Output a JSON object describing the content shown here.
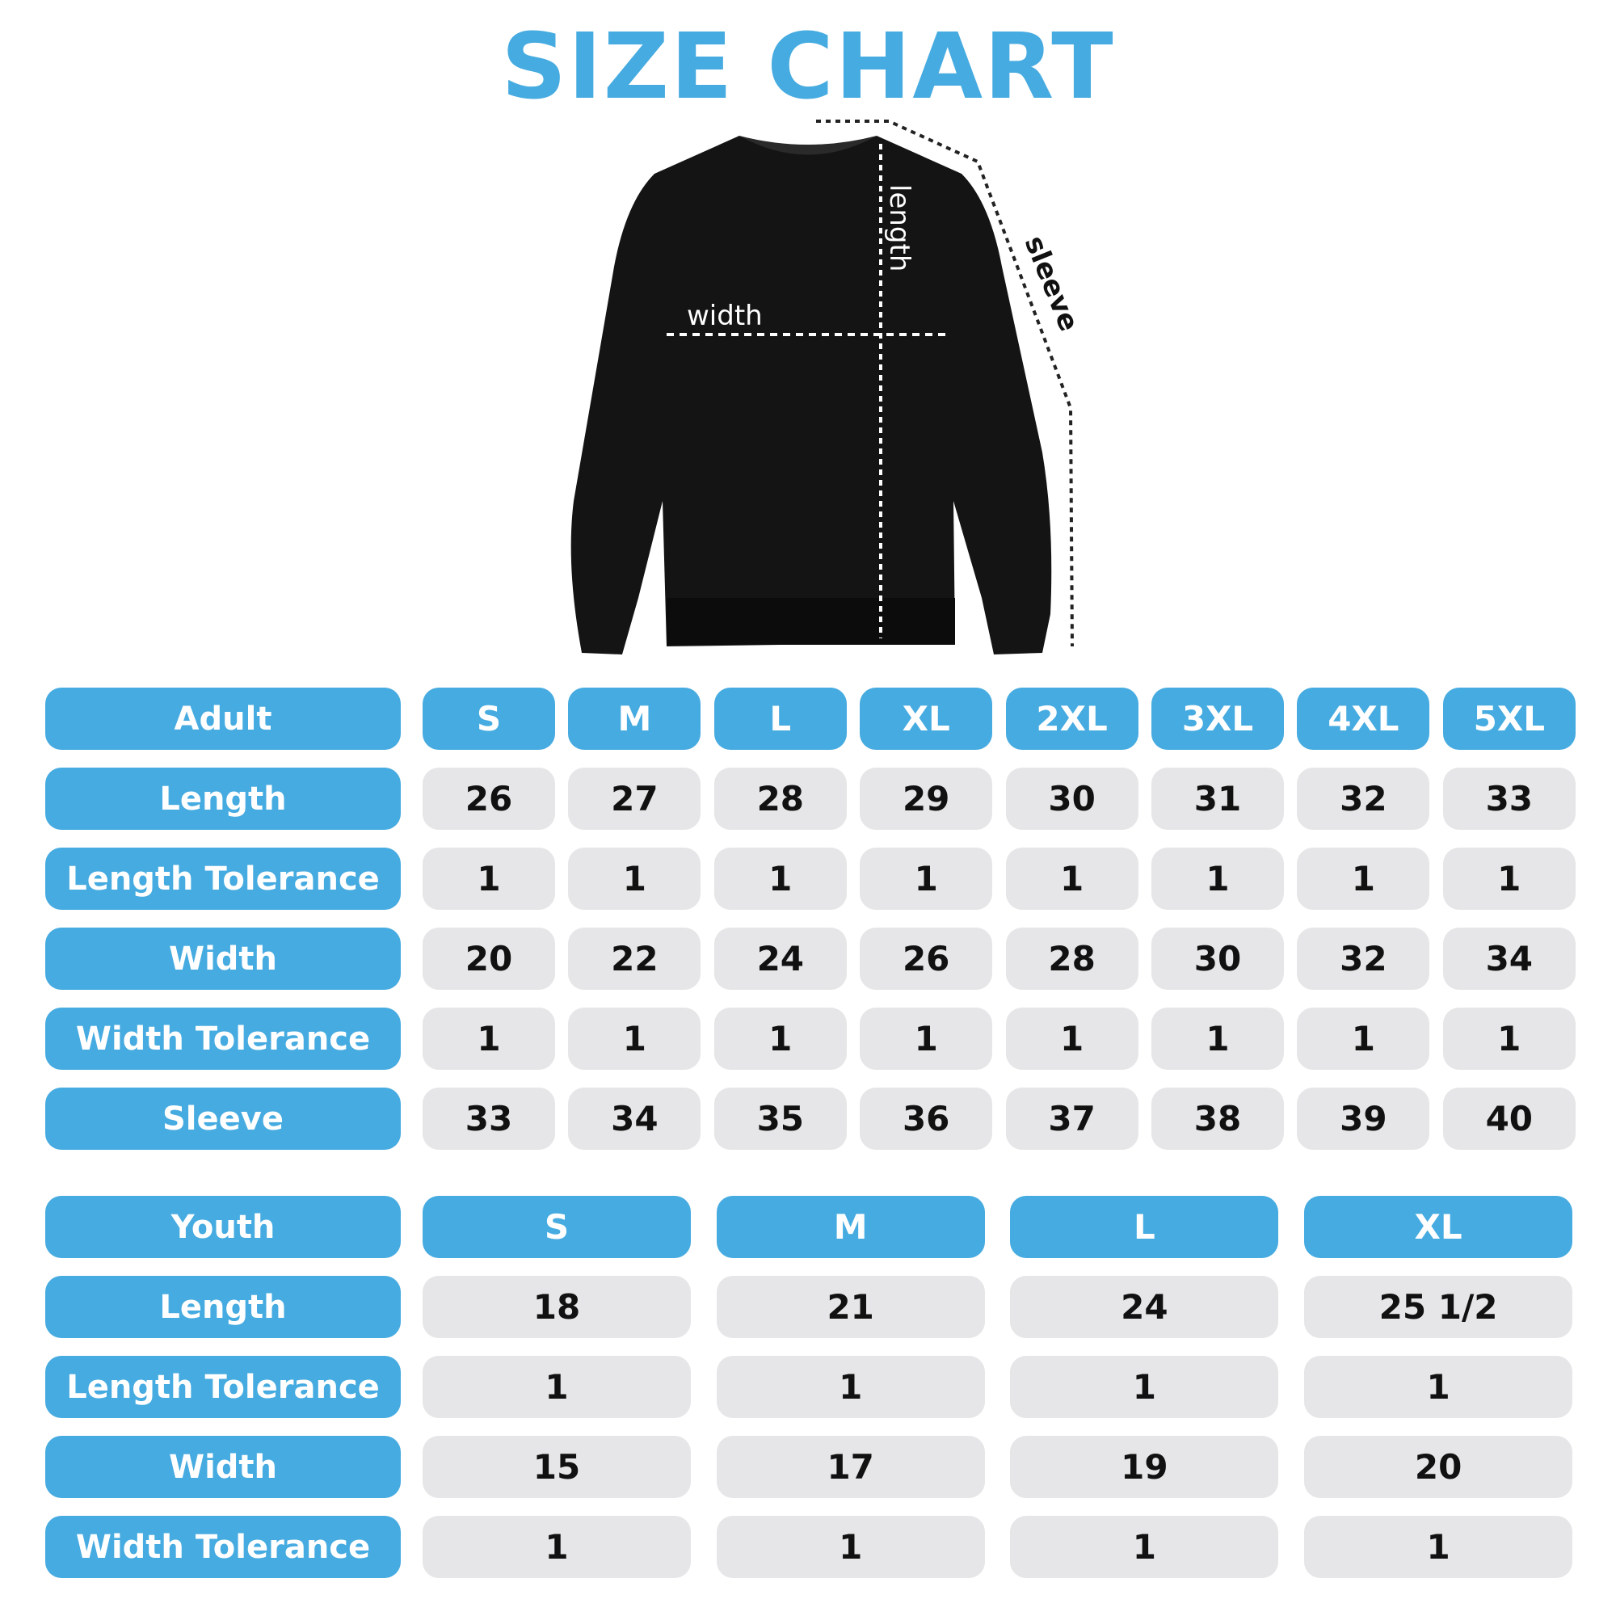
{
  "title": "SIZE CHART",
  "diagram": {
    "width_label": "width",
    "length_label": "length",
    "sleeve_label": "sleeve"
  },
  "colors": {
    "accent": "#46abe0",
    "cell_bg": "#e6e6e8",
    "text": "#111111"
  },
  "adult": {
    "header": "Adult",
    "sizes": [
      "S",
      "M",
      "L",
      "XL",
      "2XL",
      "3XL",
      "4XL",
      "5XL"
    ],
    "rows": [
      {
        "label": "Length",
        "values": [
          "26",
          "27",
          "28",
          "29",
          "30",
          "31",
          "32",
          "33"
        ]
      },
      {
        "label": "Length Tolerance",
        "values": [
          "1",
          "1",
          "1",
          "1",
          "1",
          "1",
          "1",
          "1"
        ]
      },
      {
        "label": "Width",
        "values": [
          "20",
          "22",
          "24",
          "26",
          "28",
          "30",
          "32",
          "34"
        ]
      },
      {
        "label": "Width Tolerance",
        "values": [
          "1",
          "1",
          "1",
          "1",
          "1",
          "1",
          "1",
          "1"
        ]
      },
      {
        "label": "Sleeve",
        "values": [
          "33",
          "34",
          "35",
          "36",
          "37",
          "38",
          "39",
          "40"
        ]
      }
    ]
  },
  "youth": {
    "header": "Youth",
    "sizes": [
      "S",
      "M",
      "L",
      "XL"
    ],
    "rows": [
      {
        "label": "Length",
        "values": [
          "18",
          "21",
          "24",
          "25 1/2"
        ]
      },
      {
        "label": "Length Tolerance",
        "values": [
          "1",
          "1",
          "1",
          "1"
        ]
      },
      {
        "label": "Width",
        "values": [
          "15",
          "17",
          "19",
          "20"
        ]
      },
      {
        "label": "Width Tolerance",
        "values": [
          "1",
          "1",
          "1",
          "1"
        ]
      }
    ]
  }
}
